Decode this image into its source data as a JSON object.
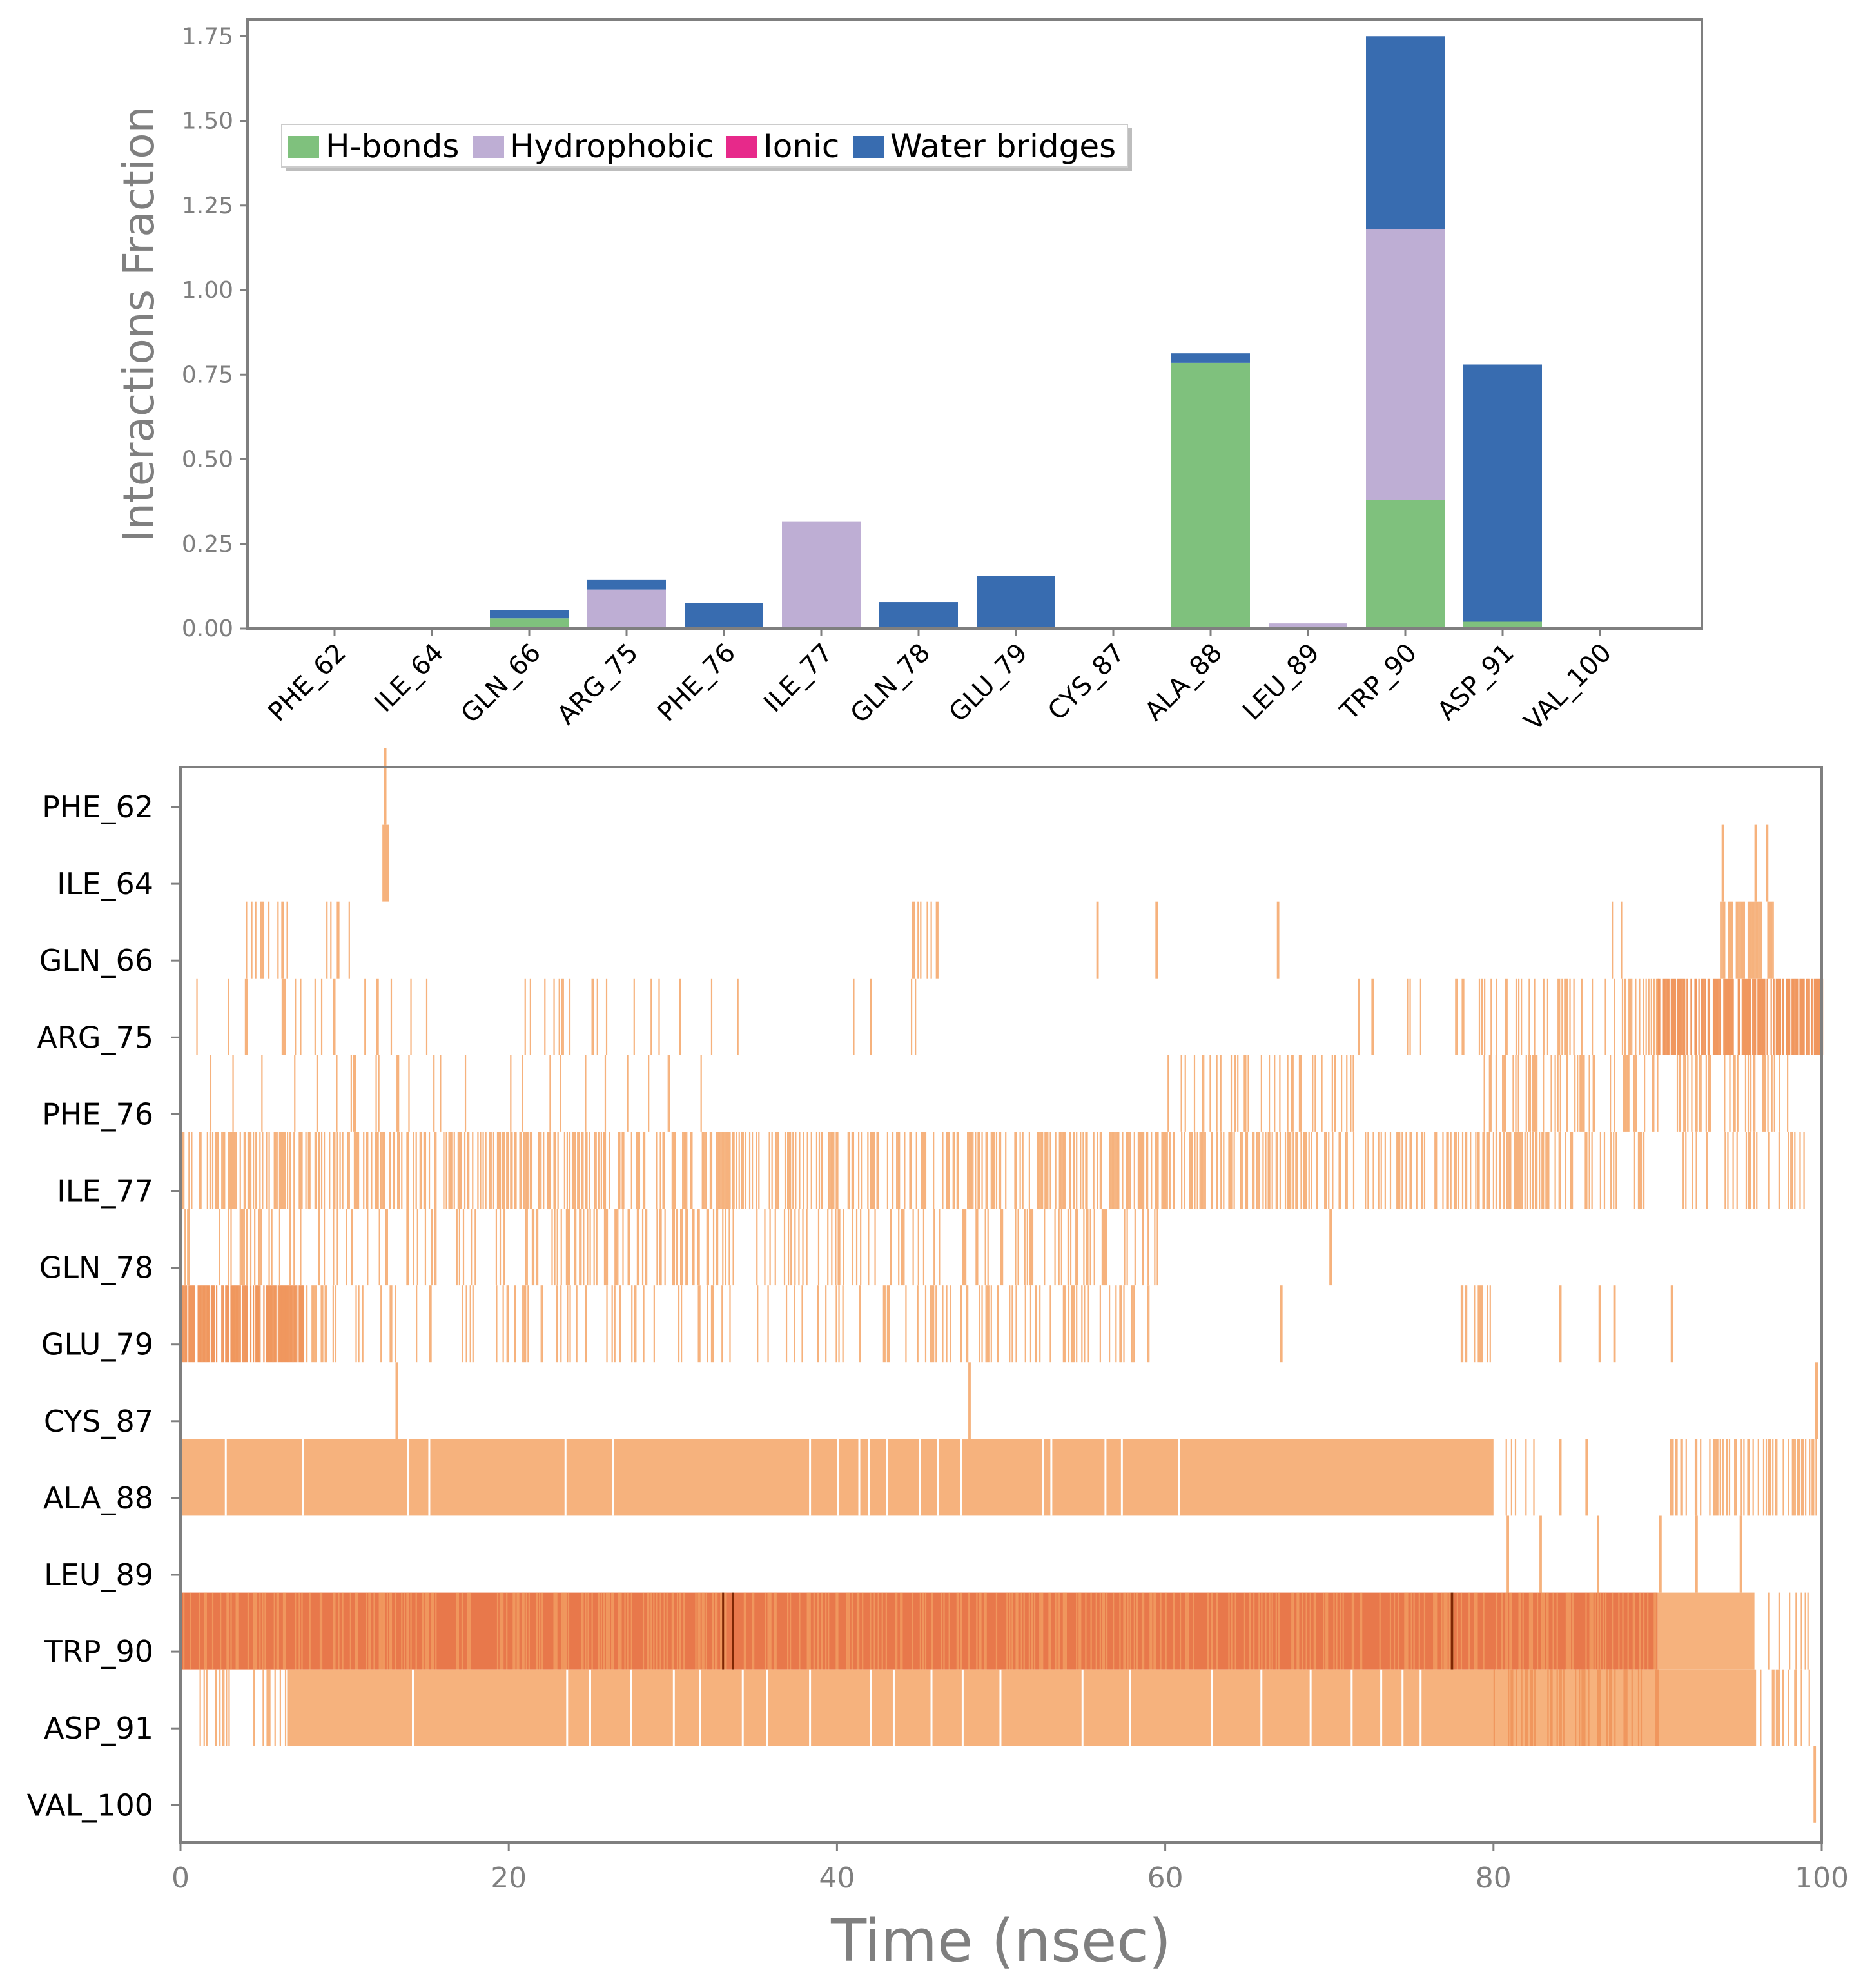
{
  "chart_data": [
    {
      "type": "bar",
      "stacked": true,
      "title": "",
      "xlabel": "",
      "ylabel": "Interactions Fraction",
      "ylim": [
        0,
        1.75
      ],
      "yticks": [
        "0.00",
        "0.25",
        "0.50",
        "0.75",
        "1.00",
        "1.25",
        "1.50",
        "1.75"
      ],
      "ytick_values": [
        0,
        0.25,
        0.5,
        0.75,
        1.0,
        1.25,
        1.5,
        1.75
      ],
      "categories": [
        "PHE_62",
        "ILE_64",
        "GLN_66",
        "ARG_75",
        "PHE_76",
        "ILE_77",
        "GLN_78",
        "GLU_79",
        "CYS_87",
        "ALA_88",
        "LEU_89",
        "TRP_90",
        "ASP_91",
        "VAL_100"
      ],
      "legend_position": "upper-left",
      "series": [
        {
          "name": "H-bonds",
          "color": "#7fc17d",
          "values": [
            0,
            0,
            0.03,
            0,
            0,
            0,
            0,
            0,
            0.005,
            0.785,
            0,
            0.38,
            0.02,
            0
          ]
        },
        {
          "name": "Hydrophobic",
          "color": "#beaed4",
          "values": [
            0,
            0.003,
            0,
            0.115,
            0,
            0.315,
            0,
            0,
            0,
            0,
            0.015,
            0.8,
            0,
            0
          ]
        },
        {
          "name": "Ionic",
          "color": "#e7298a",
          "values": [
            0,
            0,
            0,
            0,
            0,
            0,
            0,
            0,
            0,
            0,
            0,
            0,
            0,
            0
          ]
        },
        {
          "name": "Water bridges",
          "color": "#386cb0",
          "values": [
            0,
            0,
            0.025,
            0.03,
            0.075,
            0,
            0.078,
            0.155,
            0,
            0.028,
            0,
            0.57,
            0.76,
            0
          ]
        }
      ]
    },
    {
      "type": "heatmap",
      "title": "",
      "xlabel": "Time (nsec)",
      "ylabel": "",
      "xlim": [
        0,
        100
      ],
      "xticks": [
        "0",
        "20",
        "40",
        "60",
        "80",
        "100"
      ],
      "xtick_values": [
        0,
        20,
        40,
        60,
        80,
        100
      ],
      "residues": [
        "PHE_62",
        "ILE_64",
        "GLN_66",
        "ARG_75",
        "PHE_76",
        "ILE_77",
        "GLN_78",
        "GLU_79",
        "CYS_87",
        "ALA_88",
        "LEU_89",
        "TRP_90",
        "ASP_91",
        "VAL_100"
      ],
      "colormap": [
        "#fee6ce",
        "#f6b27d",
        "#f0975e",
        "#e8784b",
        "#7f2704"
      ],
      "tracks": [
        {
          "residue": "PHE_62",
          "events": [
            {
              "t": 12.4,
              "d": 0.15,
              "c": 1
            }
          ]
        },
        {
          "residue": "ILE_64",
          "events": [
            {
              "t": 12.3,
              "d": 0.4,
              "c": 1
            },
            {
              "t": 93.9,
              "d": 0.15,
              "c": 1
            },
            {
              "t": 95.9,
              "d": 0.15,
              "c": 1
            },
            {
              "t": 96.6,
              "d": 0.15,
              "c": 1
            }
          ]
        },
        {
          "residue": "GLN_66",
          "segments": [
            {
              "s": 3.5,
              "e": 6.5,
              "density": 0.35,
              "c": 1
            },
            {
              "s": 8.8,
              "e": 10.3,
              "density": 0.35,
              "c": 1
            },
            {
              "s": 44.5,
              "e": 46.2,
              "density": 0.35,
              "c": 1
            },
            {
              "s": 87.2,
              "e": 87.8,
              "density": 0.5,
              "c": 1
            },
            {
              "s": 93.8,
              "e": 97.0,
              "density": 0.75,
              "c": 1
            }
          ],
          "events": [
            {
              "t": 55.8,
              "d": 0.15,
              "c": 1
            },
            {
              "t": 59.4,
              "d": 0.15,
              "c": 1
            },
            {
              "t": 66.8,
              "d": 0.15,
              "c": 1
            }
          ]
        },
        {
          "residue": "ARG_75",
          "segments": [
            {
              "s": 0.0,
              "e": 15.0,
              "density": 0.12,
              "c": 1
            },
            {
              "s": 18.0,
              "e": 35.0,
              "density": 0.08,
              "c": 1
            },
            {
              "s": 40.5,
              "e": 46.0,
              "density": 0.1,
              "c": 1
            },
            {
              "s": 60.5,
              "e": 62.0,
              "density": 0.2,
              "c": 1
            },
            {
              "s": 70.0,
              "e": 76.0,
              "density": 0.12,
              "c": 1
            },
            {
              "s": 77.5,
              "e": 90.0,
              "density": 0.3,
              "c": 1
            },
            {
              "s": 90.0,
              "e": 100.0,
              "density": 0.75,
              "c": 2
            }
          ]
        },
        {
          "residue": "PHE_76",
          "segments": [
            {
              "s": 1.0,
              "e": 18.0,
              "density": 0.07,
              "c": 1
            },
            {
              "s": 20.0,
              "e": 32.0,
              "density": 0.07,
              "c": 1
            },
            {
              "s": 59.5,
              "e": 72.0,
              "density": 0.25,
              "c": 1
            },
            {
              "s": 79.0,
              "e": 99.0,
              "density": 0.3,
              "c": 1
            }
          ]
        },
        {
          "residue": "ILE_77",
          "segments": [
            {
              "s": 0.0,
              "e": 60.0,
              "density": 0.45,
              "c": 1
            },
            {
              "s": 60.0,
              "e": 79.0,
              "density": 0.4,
              "c": 1
            },
            {
              "s": 79.0,
              "e": 86.0,
              "density": 0.4,
              "c": 1
            },
            {
              "s": 86.0,
              "e": 99.5,
              "density": 0.2,
              "c": 1
            }
          ]
        },
        {
          "residue": "GLN_78",
          "segments": [
            {
              "s": 0.0,
              "e": 20.0,
              "density": 0.15,
              "c": 1
            },
            {
              "s": 21.0,
              "e": 39.0,
              "density": 0.3,
              "c": 1
            },
            {
              "s": 39.0,
              "e": 59.5,
              "density": 0.22,
              "c": 1
            }
          ],
          "events": [
            {
              "t": 70.0,
              "d": 0.15,
              "c": 1
            }
          ]
        },
        {
          "residue": "GLU_79",
          "segments": [
            {
              "s": 0.0,
              "e": 7.5,
              "density": 0.8,
              "c": 2
            },
            {
              "s": 7.5,
              "e": 9.5,
              "density": 0.45,
              "c": 1
            },
            {
              "s": 10.5,
              "e": 30.0,
              "density": 0.22,
              "c": 1
            },
            {
              "s": 30.0,
              "e": 59.0,
              "density": 0.2,
              "c": 1
            },
            {
              "s": 78.0,
              "e": 79.8,
              "density": 0.6,
              "c": 1
            }
          ],
          "events": [
            {
              "t": 67.0,
              "d": 0.15,
              "c": 1
            },
            {
              "t": 84.0,
              "d": 0.15,
              "c": 1
            },
            {
              "t": 86.4,
              "d": 0.15,
              "c": 1
            },
            {
              "t": 87.3,
              "d": 0.15,
              "c": 1
            },
            {
              "t": 90.8,
              "d": 0.15,
              "c": 1
            }
          ]
        },
        {
          "residue": "CYS_87",
          "events": [
            {
              "t": 13.1,
              "d": 0.15,
              "c": 1
            },
            {
              "t": 48.0,
              "d": 0.15,
              "c": 1
            },
            {
              "t": 99.6,
              "d": 0.2,
              "c": 1
            }
          ]
        },
        {
          "residue": "ALA_88",
          "blocks": [
            {
              "s": 0.0,
              "e": 80.0,
              "c": 1
            }
          ],
          "gaps": [
            2.7,
            7.4,
            13.8,
            15.1,
            23.4,
            26.3,
            38.3,
            40.0,
            41.3,
            41.9,
            43.0,
            45.0,
            46.1,
            47.5,
            52.5,
            53.0,
            56.3,
            57.3,
            60.8
          ],
          "segments": [
            {
              "s": 80.5,
              "e": 82.5,
              "density": 0.3,
              "c": 1
            },
            {
              "s": 90.5,
              "e": 100.0,
              "density": 0.45,
              "c": 1
            }
          ],
          "events": [
            {
              "t": 84.0,
              "d": 0.15,
              "c": 1
            },
            {
              "t": 85.6,
              "d": 0.15,
              "c": 1
            }
          ]
        },
        {
          "residue": "LEU_89",
          "events": [
            {
              "t": 80.8,
              "d": 0.15,
              "c": 1
            },
            {
              "t": 82.8,
              "d": 0.15,
              "c": 1
            },
            {
              "t": 86.3,
              "d": 0.15,
              "c": 1
            },
            {
              "t": 90.1,
              "d": 0.15,
              "c": 1
            },
            {
              "t": 92.3,
              "d": 0.15,
              "c": 1
            },
            {
              "t": 95.0,
              "d": 0.15,
              "c": 1
            }
          ]
        },
        {
          "residue": "TRP_90",
          "blocks": [
            {
              "s": 0.0,
              "e": 90.0,
              "c": 3
            },
            {
              "s": 90.0,
              "e": 95.9,
              "c": 1
            }
          ],
          "segments": [
            {
              "s": 0.0,
              "e": 90.0,
              "density": 0.3,
              "c": 2
            },
            {
              "s": 96.0,
              "e": 99.8,
              "density": 0.25,
              "c": 1
            }
          ],
          "events": [
            {
              "t": 33.0,
              "d": 0.12,
              "c": 4
            },
            {
              "t": 33.6,
              "d": 0.12,
              "c": 4
            },
            {
              "t": 77.4,
              "d": 0.15,
              "c": 4
            }
          ]
        },
        {
          "residue": "ASP_91",
          "blocks": [
            {
              "s": 6.5,
              "e": 96.0,
              "c": 1
            }
          ],
          "segments": [
            {
              "s": 1.0,
              "e": 6.5,
              "density": 0.3,
              "c": 1
            },
            {
              "s": 80.0,
              "e": 90.0,
              "density": 0.3,
              "c": 2
            },
            {
              "s": 96.0,
              "e": 99.5,
              "density": 0.35,
              "c": 1
            }
          ],
          "gaps": [
            14.1,
            23.5,
            24.9,
            27.4,
            30.0,
            31.6,
            34.2,
            35.7,
            38.3,
            42.0,
            43.4,
            45.7,
            47.6,
            49.9,
            54.9,
            57.8,
            62.8,
            65.8,
            68.8,
            71.3,
            73.1,
            74.4,
            75.5
          ]
        },
        {
          "residue": "VAL_100",
          "events": [
            {
              "t": 99.5,
              "d": 0.15,
              "c": 1
            }
          ]
        }
      ]
    }
  ]
}
